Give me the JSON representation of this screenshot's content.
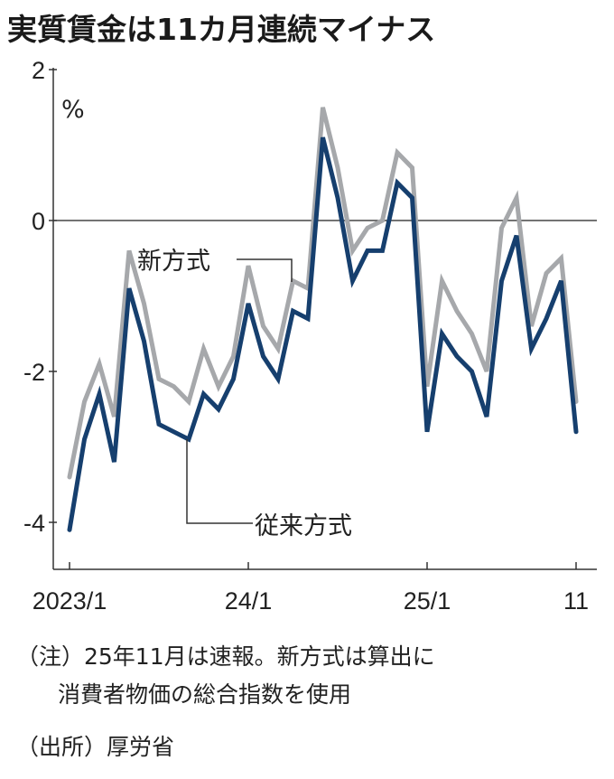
{
  "chart_data": {
    "type": "line",
    "title": "実質賃金は11カ月連続マイナス",
    "ylabel": "%",
    "ylim": [
      -4.6,
      2
    ],
    "yticks": [
      2,
      0,
      -2,
      -4
    ],
    "ytick_labels": [
      "2",
      "0",
      "-2",
      "-4"
    ],
    "x": [
      "2023/1",
      "2023/2",
      "2023/3",
      "2023/4",
      "2023/5",
      "2023/6",
      "2023/7",
      "2023/8",
      "2023/9",
      "2023/10",
      "2023/11",
      "2023/12",
      "2024/1",
      "2024/2",
      "2024/3",
      "2024/4",
      "2024/5",
      "2024/6",
      "2024/7",
      "2024/8",
      "2024/9",
      "2024/10",
      "2024/11",
      "2024/12",
      "2025/1",
      "2025/2",
      "2025/3",
      "2025/4",
      "2025/5",
      "2025/6",
      "2025/7",
      "2025/8",
      "2025/9",
      "2025/10",
      "2025/11"
    ],
    "xticks": [
      {
        "index": 0,
        "label": "2023/1"
      },
      {
        "index": 12,
        "label": "24/1"
      },
      {
        "index": 24,
        "label": "25/1"
      },
      {
        "index": 34,
        "label": "11"
      }
    ],
    "series": [
      {
        "name": "新方式",
        "color": "#a6a8ab",
        "values": [
          -3.4,
          -2.4,
          -1.9,
          -2.6,
          -0.4,
          -1.1,
          -2.1,
          -2.2,
          -2.4,
          -1.7,
          -2.2,
          -1.8,
          -0.6,
          -1.4,
          -1.7,
          -0.8,
          -0.9,
          1.5,
          0.7,
          -0.4,
          -0.1,
          0.0,
          0.9,
          0.7,
          -2.2,
          -0.8,
          -1.2,
          -1.5,
          -2.0,
          -0.1,
          0.3,
          -1.4,
          -0.7,
          -0.5,
          -2.4
        ]
      },
      {
        "name": "従来方式",
        "color": "#163f6e",
        "values": [
          -4.1,
          -2.9,
          -2.3,
          -3.2,
          -0.9,
          -1.6,
          -2.7,
          -2.8,
          -2.9,
          -2.3,
          -2.5,
          -2.1,
          -1.1,
          -1.8,
          -2.1,
          -1.2,
          -1.3,
          1.1,
          0.3,
          -0.8,
          -0.4,
          -0.4,
          0.5,
          0.3,
          -2.8,
          -1.5,
          -1.8,
          -2.0,
          -2.6,
          -0.8,
          -0.2,
          -1.7,
          -1.3,
          -0.8,
          -2.8
        ]
      }
    ],
    "notes": [
      "（注）25年11月は速報。新方式は算出に",
      "消費者物価の総合指数を使用",
      "（出所）厚労省"
    ]
  }
}
